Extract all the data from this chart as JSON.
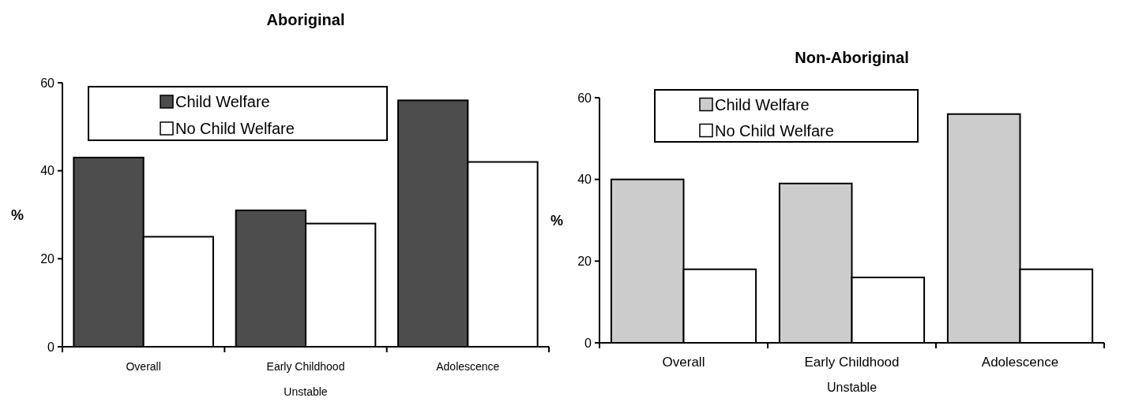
{
  "chart_data": [
    {
      "type": "bar",
      "title": "Aboriginal",
      "xlabel": "Unstable",
      "ylabel": "%",
      "categories": [
        "Overall",
        "Early Childhood",
        "Adolescence"
      ],
      "series": [
        {
          "name": "Child Welfare",
          "color": "#4d4d4d",
          "values": [
            43,
            31,
            56
          ]
        },
        {
          "name": "No Child Welfare",
          "color": "#ffffff",
          "values": [
            25,
            28,
            42
          ]
        }
      ],
      "ylim": [
        0,
        60
      ],
      "yticks": [
        0,
        20,
        40,
        60
      ],
      "grid": false,
      "legend": "top"
    },
    {
      "type": "bar",
      "title": "Non-Aboriginal",
      "xlabel": "Unstable",
      "ylabel": "%",
      "categories": [
        "Overall",
        "Early Childhood",
        "Adolescence"
      ],
      "series": [
        {
          "name": "Child Welfare",
          "color": "#cccccc",
          "values": [
            40,
            39,
            56
          ]
        },
        {
          "name": "No Child Welfare",
          "color": "#ffffff",
          "values": [
            18,
            16,
            18
          ]
        }
      ],
      "ylim": [
        0,
        60
      ],
      "yticks": [
        0,
        20,
        40,
        60
      ],
      "grid": false,
      "legend": "top"
    }
  ]
}
